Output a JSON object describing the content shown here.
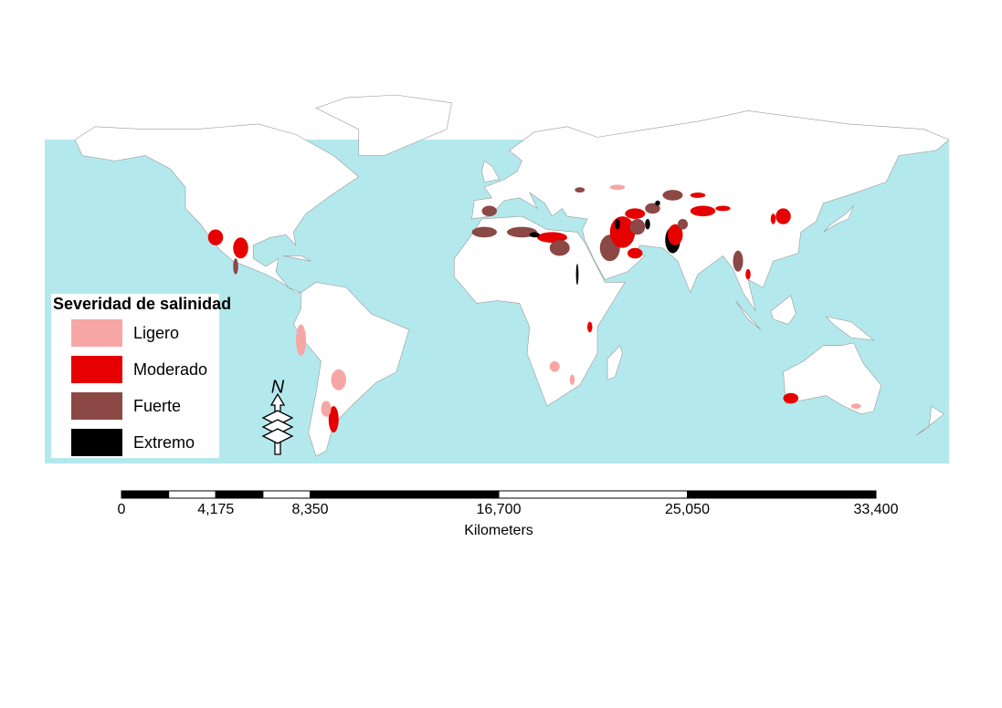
{
  "map": {
    "legend": {
      "title": "Severidad de salinidad",
      "items": [
        {
          "label": "Ligero",
          "color": "#f7a6a6"
        },
        {
          "label": "Moderado",
          "color": "#e60000"
        },
        {
          "label": "Fuerte",
          "color": "#8b4845"
        },
        {
          "label": "Extremo",
          "color": "#000000"
        }
      ]
    },
    "north_arrow": "N",
    "scale_bar": {
      "xlim": [
        0,
        33400
      ],
      "xticks": [
        0,
        {
          "value": 4175,
          "label": "4,175"
        },
        {
          "value": 8350,
          "label": "8,350"
        },
        {
          "value": 16700,
          "label": "16,700"
        },
        {
          "value": 25050,
          "label": "25,050"
        },
        {
          "value": 33400,
          "label": "33,400"
        }
      ],
      "label": "Kilometers"
    }
  }
}
